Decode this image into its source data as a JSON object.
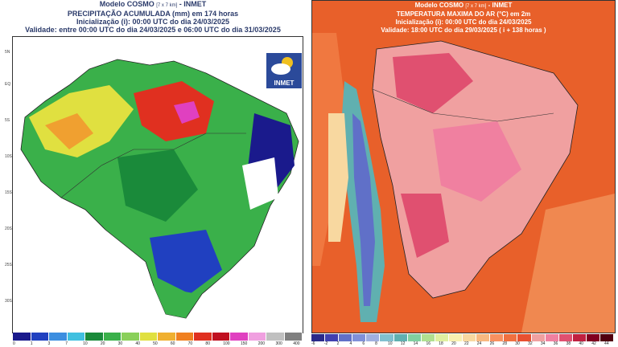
{
  "left_map": {
    "title_line1": "Modelo COSMO",
    "title_res": "[7 x 7 km]",
    "title_org": "- INMET",
    "title_line2": "PRECIPITAÇÃO ACUMULADA (mm) em 174 horas",
    "title_line3": "Inicialização (i): 00:00 UTC do dia 24/03/2025",
    "title_line4": "Validade: entre 00:00 UTC do dia 24/03/2025 e 06:00 UTC do dia 31/03/2025",
    "logo_text": "INMET",
    "lat_ticks": [
      "5N",
      "EQ",
      "5S",
      "10S",
      "15S",
      "20S",
      "25S",
      "30S"
    ],
    "colorbar_colors": [
      "#1a1a8c",
      "#2040c0",
      "#3c8ee0",
      "#40c0e0",
      "#1a8a3a",
      "#3ab04a",
      "#8ad05a",
      "#e0e040",
      "#f0b030",
      "#f08020",
      "#e03020",
      "#c01020",
      "#e040c0",
      "#f0a0e0",
      "#c0c0c0",
      "#808080"
    ],
    "colorbar_ticks": [
      "0",
      "1",
      "3",
      "7",
      "10",
      "20",
      "30",
      "40",
      "50",
      "60",
      "70",
      "80",
      "100",
      "150",
      "200",
      "300",
      "400"
    ]
  },
  "right_map": {
    "title_line1": "Modelo COSMO",
    "title_res": "[7 x 7 km]",
    "title_org": "- INMET",
    "title_line2": "TEMPERATURA MAXIMA DO AR (°C) em 2m",
    "title_line3": "Inicialização (i): 00:00 UTC do dia 24/03/2025",
    "title_line4": "Validade: 18:00 UTC do dia 29/03/2025 ( i + 138 horas )",
    "colorbar_colors": [
      "#2a2a8a",
      "#4040b0",
      "#6070c8",
      "#8090d8",
      "#a0b0e0",
      "#80c0d0",
      "#60b0b0",
      "#80d0a0",
      "#b0e090",
      "#e0f0a0",
      "#f8f0b0",
      "#f8d8a0",
      "#f8b880",
      "#f89060",
      "#f07040",
      "#e85030",
      "#f0a0a0",
      "#f080a0",
      "#e05070",
      "#c02040",
      "#800020",
      "#500010"
    ],
    "colorbar_ticks": [
      "-6",
      "-2",
      "2",
      "4",
      "6",
      "8",
      "10",
      "12",
      "14",
      "16",
      "18",
      "20",
      "22",
      "24",
      "26",
      "28",
      "30",
      "32",
      "34",
      "36",
      "38",
      "40",
      "42",
      "44"
    ]
  }
}
